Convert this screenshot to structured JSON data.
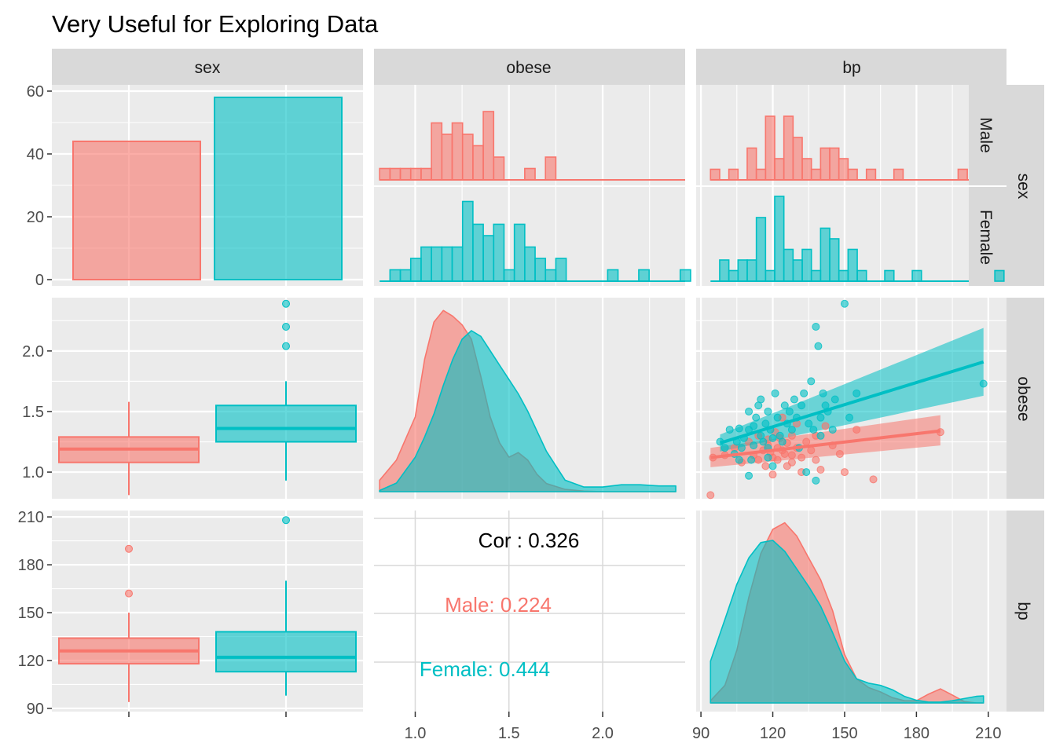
{
  "chart_data": {
    "type": "pairs",
    "title": "Very Useful for Exploring Data",
    "variables": [
      "sex",
      "obese",
      "bp"
    ],
    "sex_levels": [
      "Male",
      "Female"
    ],
    "row_facet_label": "sex",
    "colors": {
      "Male": "#F8766D",
      "Female": "#00BFC4"
    },
    "panel_bg": "#EBEBEB",
    "strip_bg": "#D9D9D9",
    "axes": {
      "obese": {
        "range": [
          0.78,
          2.44
        ],
        "ticks": [
          "1.0",
          "1.5",
          "2.0"
        ]
      },
      "bp": {
        "range": [
          88,
          214
        ],
        "ticks": [
          "90",
          "120",
          "150",
          "180",
          "210"
        ]
      },
      "count": {
        "range": [
          -2,
          62
        ],
        "ticks": [
          "0",
          "20",
          "40",
          "60"
        ]
      }
    },
    "sex_counts": [
      {
        "group": "Male",
        "count": 44
      },
      {
        "group": "Female",
        "count": 58
      }
    ],
    "histograms": {
      "obese": {
        "bin_start": 0.81,
        "bin_width": 0.0553,
        "Male": [
          1,
          1,
          1,
          1,
          1,
          5,
          4,
          5,
          4,
          3,
          6,
          2,
          0,
          0,
          1,
          0,
          2,
          0,
          0,
          0,
          0,
          0,
          0,
          0,
          0,
          0,
          0,
          0,
          0,
          0
        ],
        "Female": [
          0,
          1,
          1,
          2,
          3,
          3,
          3,
          3,
          7,
          5,
          4,
          5,
          1,
          5,
          3,
          2,
          1,
          2,
          0,
          0,
          0,
          0,
          1,
          0,
          0,
          1,
          0,
          0,
          0,
          1
        ]
      },
      "bp": {
        "bin_start": 94,
        "bin_width": 3.83,
        "Male": [
          1,
          0,
          1,
          0,
          3,
          1,
          6,
          2,
          6,
          4,
          2,
          1,
          3,
          3,
          2,
          1,
          0,
          1,
          0,
          0,
          1,
          0,
          0,
          0,
          0,
          0,
          0,
          1,
          0,
          0,
          0,
          0
        ],
        "Female": [
          0,
          2,
          1,
          2,
          2,
          6,
          1,
          8,
          3,
          2,
          3,
          1,
          5,
          4,
          1,
          3,
          1,
          0,
          0,
          1,
          0,
          0,
          1,
          0,
          0,
          0,
          0,
          0,
          0,
          0,
          0,
          1
        ]
      }
    },
    "boxplots": {
      "obese": {
        "Male": {
          "min": 0.81,
          "q1": 1.08,
          "median": 1.19,
          "q3": 1.29,
          "max": 1.58,
          "outliers": []
        },
        "Female": {
          "min": 0.93,
          "q1": 1.25,
          "median": 1.36,
          "q3": 1.55,
          "max": 1.75,
          "outliers": [
            2.04,
            2.2,
            2.39
          ]
        }
      },
      "bp": {
        "Male": {
          "min": 94,
          "q1": 118,
          "median": 126,
          "q3": 134,
          "max": 150,
          "outliers": [
            162,
            190
          ]
        },
        "Female": {
          "min": 98,
          "q1": 113,
          "median": 122,
          "q3": 138,
          "max": 170,
          "outliers": [
            208
          ]
        }
      }
    },
    "density": {
      "obese": {
        "x": [
          0.81,
          0.9,
          1.0,
          1.05,
          1.1,
          1.15,
          1.2,
          1.25,
          1.3,
          1.35,
          1.4,
          1.45,
          1.5,
          1.55,
          1.6,
          1.65,
          1.7,
          1.8,
          1.9,
          2.0,
          2.1,
          2.2,
          2.3,
          2.39
        ],
        "Male": [
          0.2,
          0.55,
          1.3,
          2.3,
          2.95,
          3.15,
          3.05,
          2.9,
          2.65,
          2.0,
          1.3,
          0.85,
          0.6,
          0.68,
          0.55,
          0.3,
          0.14,
          0.04,
          0.01,
          0.0,
          0.0,
          0.0,
          0.0,
          0.0
        ],
        "Female": [
          0.02,
          0.15,
          0.6,
          0.95,
          1.35,
          1.85,
          2.3,
          2.65,
          2.8,
          2.7,
          2.45,
          2.2,
          1.95,
          1.7,
          1.4,
          1.05,
          0.7,
          0.2,
          0.08,
          0.08,
          0.12,
          0.12,
          0.1,
          0.1
        ]
      },
      "bp": {
        "x": [
          94,
          100,
          105,
          110,
          115,
          120,
          125,
          130,
          135,
          140,
          145,
          150,
          155,
          160,
          165,
          170,
          175,
          180,
          185,
          190,
          195,
          200,
          205,
          208
        ],
        "Male": [
          0.05,
          0.4,
          1.2,
          2.4,
          3.4,
          3.95,
          4.1,
          3.8,
          3.3,
          2.8,
          2.1,
          1.1,
          0.55,
          0.35,
          0.25,
          0.12,
          0.05,
          0.05,
          0.2,
          0.32,
          0.18,
          0.03,
          0.0,
          0.0
        ],
        "Female": [
          0.95,
          1.9,
          2.7,
          3.3,
          3.65,
          3.7,
          3.45,
          3.05,
          2.65,
          2.2,
          1.6,
          0.95,
          0.55,
          0.45,
          0.4,
          0.3,
          0.15,
          0.06,
          0.02,
          0.02,
          0.05,
          0.1,
          0.15,
          0.16
        ]
      }
    },
    "scatter": {
      "x": "bp",
      "y": "obese",
      "Male": [
        [
          94,
          0.81
        ],
        [
          95,
          1.12
        ],
        [
          100,
          1.14
        ],
        [
          104,
          1.2
        ],
        [
          107,
          1.08
        ],
        [
          110,
          1.25
        ],
        [
          112,
          1.14
        ],
        [
          114,
          1.1
        ],
        [
          114,
          1.3
        ],
        [
          116,
          1.18
        ],
        [
          117,
          1.05
        ],
        [
          118,
          1.22
        ],
        [
          119,
          1.16
        ],
        [
          120,
          1.12
        ],
        [
          120,
          0.98
        ],
        [
          121,
          1.33
        ],
        [
          122,
          1.1
        ],
        [
          122,
          1.2
        ],
        [
          123,
          1.28
        ],
        [
          124,
          1.18
        ],
        [
          125,
          1.15
        ],
        [
          126,
          1.05
        ],
        [
          126,
          1.24
        ],
        [
          128,
          1.14
        ],
        [
          128,
          1.3
        ],
        [
          130,
          1.2
        ],
        [
          130,
          1.4
        ],
        [
          132,
          1.12
        ],
        [
          132,
          1.0
        ],
        [
          134,
          1.25
        ],
        [
          136,
          1.18
        ],
        [
          138,
          1.3
        ],
        [
          138,
          1.1
        ],
        [
          140,
          1.02
        ],
        [
          142,
          1.38
        ],
        [
          145,
          1.22
        ],
        [
          148,
          1.15
        ],
        [
          150,
          1.0
        ],
        [
          155,
          1.35
        ],
        [
          162,
          0.94
        ],
        [
          190,
          1.33
        ],
        [
          124,
          1.45
        ],
        [
          118,
          1.27
        ],
        [
          128,
          1.08
        ]
      ],
      "Female": [
        [
          98,
          1.25
        ],
        [
          100,
          1.2
        ],
        [
          102,
          1.35
        ],
        [
          104,
          1.15
        ],
        [
          105,
          1.25
        ],
        [
          106,
          1.36
        ],
        [
          107,
          1.2
        ],
        [
          108,
          1.28
        ],
        [
          110,
          1.35
        ],
        [
          110,
          1.5
        ],
        [
          111,
          1.1
        ],
        [
          112,
          1.22
        ],
        [
          112,
          1.38
        ],
        [
          113,
          1.45
        ],
        [
          114,
          1.55
        ],
        [
          115,
          1.3
        ],
        [
          115,
          1.6
        ],
        [
          116,
          1.25
        ],
        [
          117,
          1.4
        ],
        [
          118,
          1.2
        ],
        [
          118,
          1.5
        ],
        [
          119,
          1.35
        ],
        [
          120,
          1.28
        ],
        [
          121,
          1.65
        ],
        [
          122,
          1.45
        ],
        [
          123,
          1.3
        ],
        [
          124,
          1.25
        ],
        [
          125,
          1.55
        ],
        [
          126,
          1.4
        ],
        [
          127,
          1.5
        ],
        [
          128,
          1.35
        ],
        [
          129,
          1.6
        ],
        [
          130,
          1.45
        ],
        [
          131,
          1.2
        ],
        [
          132,
          1.55
        ],
        [
          133,
          1.65
        ],
        [
          134,
          1.0
        ],
        [
          135,
          1.4
        ],
        [
          136,
          1.75
        ],
        [
          137,
          1.35
        ],
        [
          138,
          2.2
        ],
        [
          139,
          2.04
        ],
        [
          140,
          1.45
        ],
        [
          140,
          1.3
        ],
        [
          141,
          1.65
        ],
        [
          142,
          1.55
        ],
        [
          143,
          1.5
        ],
        [
          145,
          1.35
        ],
        [
          146,
          1.6
        ],
        [
          150,
          2.39
        ],
        [
          152,
          1.45
        ],
        [
          155,
          1.65
        ],
        [
          110,
          0.97
        ],
        [
          118,
          1.12
        ],
        [
          106,
          1.1
        ],
        [
          138,
          0.93
        ],
        [
          120,
          1.05
        ],
        [
          208,
          1.73
        ]
      ]
    },
    "regression": {
      "Male": {
        "x": [
          94,
          190
        ],
        "y": [
          1.12,
          1.34
        ],
        "band_low": [
          1.04,
          1.22
        ],
        "band_high": [
          1.2,
          1.47
        ]
      },
      "Female": {
        "x": [
          98,
          208
        ],
        "y": [
          1.24,
          1.91
        ],
        "band_low": [
          1.17,
          1.63
        ],
        "band_high": [
          1.31,
          2.19
        ]
      }
    },
    "correlation": {
      "overall_label": "Cor : 0.326",
      "Male_label": "Male: 0.224",
      "Female_label": "Female: 0.444"
    }
  }
}
